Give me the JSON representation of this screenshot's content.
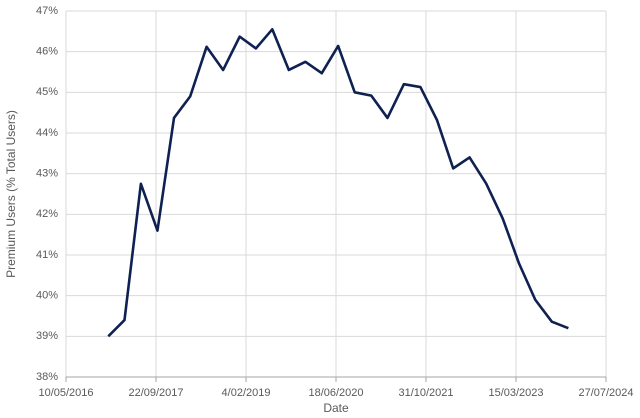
{
  "chart_data": {
    "type": "line",
    "x_label": "Date",
    "y_label": "Premium Users (% Total Users)",
    "x": [
      "31/12/2016",
      "31/03/2017",
      "30/06/2017",
      "30/09/2017",
      "31/12/2017",
      "31/03/2018",
      "30/06/2018",
      "30/09/2018",
      "31/12/2018",
      "31/03/2019",
      "30/06/2019",
      "30/09/2019",
      "31/12/2019",
      "31/03/2020",
      "30/06/2020",
      "30/09/2020",
      "31/12/2020",
      "31/03/2021",
      "30/06/2021",
      "30/09/2021",
      "31/12/2021",
      "31/03/2022",
      "30/06/2022",
      "30/09/2022",
      "31/12/2022",
      "31/03/2023",
      "30/06/2023",
      "30/09/2023",
      "31/12/2023"
    ],
    "series": [
      {
        "color": "#0f2150",
        "values": [
          39.0,
          39.4,
          42.75,
          41.6,
          44.37,
          44.9,
          46.12,
          45.55,
          46.37,
          46.08,
          46.55,
          45.55,
          45.75,
          45.47,
          46.14,
          45.0,
          44.92,
          44.37,
          45.2,
          45.13,
          44.32,
          43.13,
          43.4,
          42.76,
          41.9,
          40.8,
          39.9,
          39.36,
          39.2
        ]
      }
    ],
    "xlim": [
      "10/05/2016",
      "27/07/2024"
    ],
    "xticks": [
      "10/05/2016",
      "22/09/2017",
      "4/02/2019",
      "18/06/2020",
      "31/10/2021",
      "15/03/2023",
      "27/07/2024"
    ],
    "ylim": [
      38,
      47
    ],
    "yticks": [
      {
        "value": 38,
        "label": "38%"
      },
      {
        "value": 39,
        "label": "39%"
      },
      {
        "value": 40,
        "label": "40%"
      },
      {
        "value": 41,
        "label": "41%"
      },
      {
        "value": 42,
        "label": "42%"
      },
      {
        "value": 43,
        "label": "43%"
      },
      {
        "value": 44,
        "label": "44%"
      },
      {
        "value": 45,
        "label": "45%"
      },
      {
        "value": 46,
        "label": "46%"
      },
      {
        "value": 47,
        "label": "47%"
      }
    ],
    "grid": true
  }
}
